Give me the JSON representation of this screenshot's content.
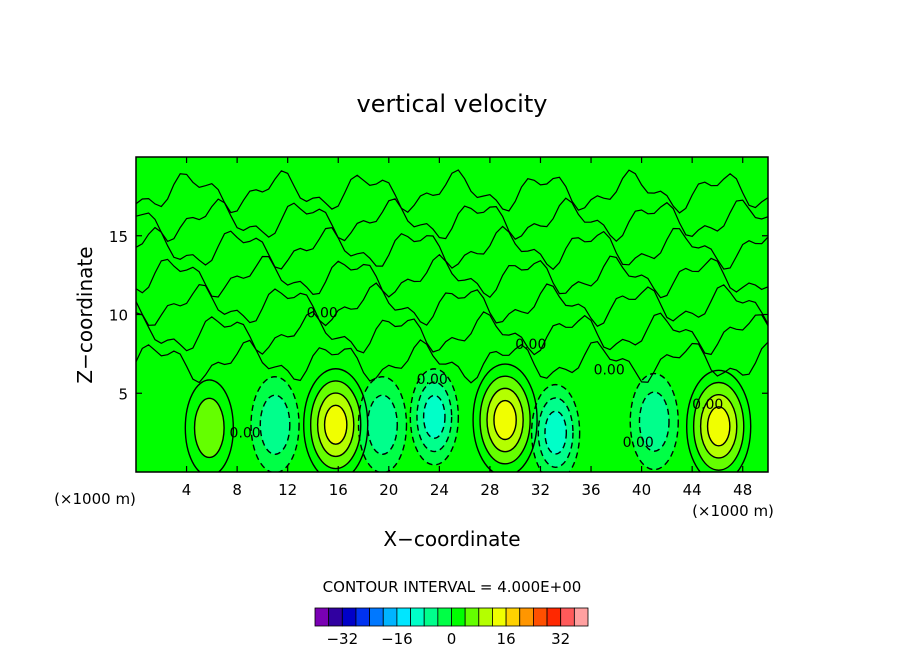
{
  "chart_data": {
    "type": "heatmap",
    "title": "vertical velocity",
    "xlabel": "X−coordinate",
    "ylabel": "Z−coordinate",
    "x_unit": "(×1000 m)",
    "x_unit_right": "(×1000 m)",
    "xlim": [
      0,
      50
    ],
    "ylim": [
      0,
      20
    ],
    "xticks": [
      4,
      8,
      12,
      16,
      20,
      24,
      28,
      32,
      36,
      40,
      44,
      48
    ],
    "xtick_labels": [
      "4",
      "8",
      "12",
      "16",
      "20",
      "24",
      "28",
      "32",
      "36",
      "40",
      "44",
      "48"
    ],
    "yticks": [
      5,
      10,
      15
    ],
    "ytick_labels": [
      "5",
      "10",
      "15"
    ],
    "contour_interval_text": "CONTOUR INTERVAL = 4.000E+00",
    "contour_labels": [
      "0.00",
      "0.00",
      "0.00",
      "0.00",
      "0.00",
      "0.00",
      "0.00"
    ],
    "colorbar": {
      "levels": [
        -40,
        -36,
        -32,
        -28,
        -24,
        -20,
        -16,
        -12,
        -8,
        -4,
        0,
        4,
        8,
        12,
        16,
        20,
        24,
        28,
        32,
        36,
        40
      ],
      "tick_values": [
        -32,
        -16,
        0,
        16,
        32
      ],
      "tick_labels": [
        "−32",
        "−16",
        "0",
        "16",
        "32"
      ],
      "colors": [
        "#7a00b4",
        "#3000a0",
        "#0000c8",
        "#0032f0",
        "#0078ff",
        "#00b4ff",
        "#00e6ff",
        "#00ffc8",
        "#00ff8c",
        "#00ff46",
        "#00ff00",
        "#64ff00",
        "#b4ff00",
        "#f0ff00",
        "#ffd200",
        "#ff9600",
        "#ff5000",
        "#ff2800",
        "#ff5a5a",
        "#ffa0a0"
      ]
    },
    "cells": [
      {
        "x": 5.8,
        "z": 2.8,
        "w": 6
      },
      {
        "x": 11.0,
        "z": 3.0,
        "w": -8
      },
      {
        "x": 15.8,
        "z": 3.0,
        "w": 14
      },
      {
        "x": 19.5,
        "z": 3.0,
        "w": -6
      },
      {
        "x": 23.6,
        "z": 3.5,
        "w": -11
      },
      {
        "x": 29.2,
        "z": 3.3,
        "w": 14
      },
      {
        "x": 33.2,
        "z": 2.5,
        "w": -10
      },
      {
        "x": 41.0,
        "z": 3.2,
        "w": -6
      },
      {
        "x": 46.1,
        "z": 2.9,
        "w": 14
      }
    ]
  }
}
